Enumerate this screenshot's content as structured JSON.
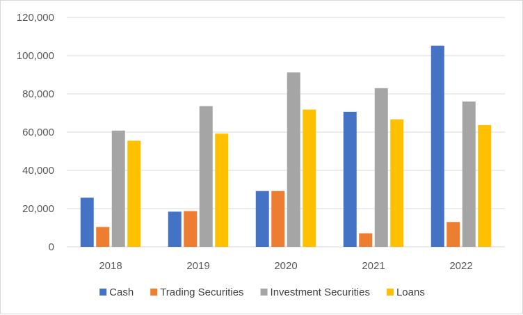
{
  "chart_data": {
    "type": "bar",
    "title": "",
    "xlabel": "",
    "ylabel": "",
    "categories": [
      "2018",
      "2019",
      "2020",
      "2021",
      "2022"
    ],
    "series": [
      {
        "name": "Cash",
        "color": "#4472c4",
        "values": [
          25700,
          18400,
          29200,
          70600,
          105200
        ]
      },
      {
        "name": "Trading Securities",
        "color": "#ed7d31",
        "values": [
          10400,
          18700,
          29200,
          7100,
          13000
        ]
      },
      {
        "name": "Investment Securities",
        "color": "#a5a5a5",
        "values": [
          60800,
          73600,
          91200,
          83000,
          76000
        ]
      },
      {
        "name": "Loans",
        "color": "#ffc000",
        "values": [
          55500,
          59200,
          71800,
          66700,
          63700
        ]
      }
    ],
    "ylim": [
      0,
      120000
    ],
    "yticks": [
      "0",
      "20,000",
      "40,000",
      "60,000",
      "80,000",
      "100,000",
      "120,000"
    ],
    "grid": true,
    "legend_position": "bottom"
  }
}
